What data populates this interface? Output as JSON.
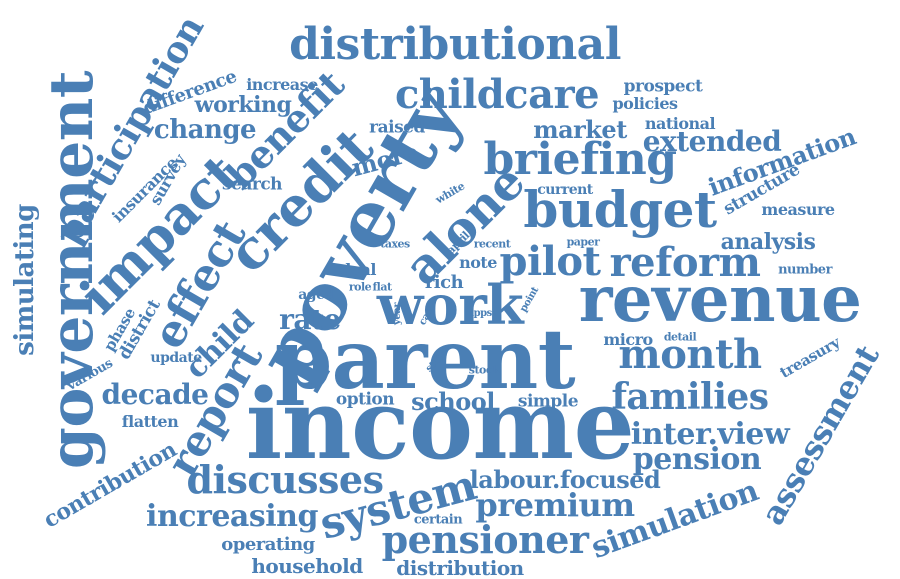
{
  "accent_color": "#4a7fb5",
  "words": {
    "distributional": "distributional",
    "childcare": "childcare",
    "increase": "increase",
    "working": "working",
    "difference": "difference",
    "participation": "participation",
    "change": "change",
    "benefit": "benefit",
    "raised": "raised",
    "prospect": "prospect",
    "policies": "policies",
    "market": "market",
    "national": "national",
    "extended": "extended",
    "briefing": "briefing",
    "information": "information",
    "poverty": "poverty",
    "credit": "credit",
    "more": "more",
    "government": "government",
    "insurance": "insurance",
    "survey": "survey",
    "search": "search",
    "impact": "impact",
    "white": "white",
    "current": "current",
    "budget": "budget",
    "structure": "structure",
    "measure": "measure",
    "simulating": "simulating",
    "effect": "effect",
    "alone": "alone",
    "taxes": "taxes",
    "april": "april",
    "recent": "recent",
    "paper": "paper",
    "analysis": "analysis",
    "deal": "deal",
    "note": "note",
    "pilot": "pilot",
    "reform": "reform",
    "number": "number",
    "aged": "aged",
    "role": "role",
    "flat": "flat",
    "rich": "rich",
    "phase": "phase",
    "district": "district",
    "work": "work",
    "revenue": "revenue",
    "point": "point",
    "year": "year",
    "case": "case",
    "lpps": "lpps",
    "rate": "rate",
    "child": "child",
    "report": "report",
    "micro": "micro",
    "detail": "detail",
    "parent": "parent",
    "month": "month",
    "update": "update",
    "various": "various",
    "state": "state",
    "stock": "stock",
    "treasury": "treasury",
    "decade": "decade",
    "option": "option",
    "school": "school",
    "simple": "simple",
    "families": "families",
    "flatten": "flatten",
    "income": "income",
    "interview": "inter.view",
    "assessment": "assessment",
    "contribution": "contribution",
    "pension": "pension",
    "discusses": "discusses",
    "system": "system",
    "labour_focused": "labour.focused",
    "increasing": "increasing",
    "premium": "premium",
    "certain": "certain",
    "simulation": "simulation",
    "operating": "operating",
    "pensioner": "pensioner",
    "household": "household",
    "distribution": "distribution"
  }
}
